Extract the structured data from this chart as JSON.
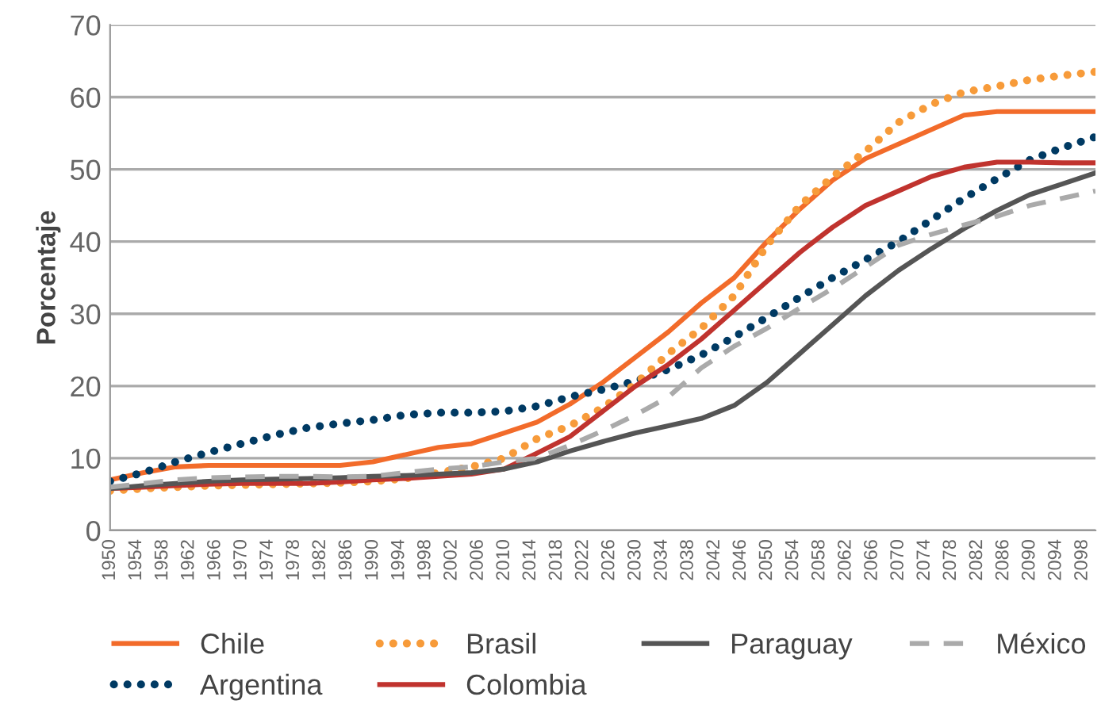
{
  "chart_data": {
    "type": "line",
    "ylabel": "Porcentaje",
    "x": [
      1950,
      1955,
      1960,
      1965,
      1970,
      1975,
      1980,
      1985,
      1990,
      1995,
      2000,
      2005,
      2010,
      2015,
      2020,
      2025,
      2030,
      2035,
      2040,
      2045,
      2050,
      2055,
      2060,
      2065,
      2070,
      2075,
      2080,
      2085,
      2090,
      2095,
      2100
    ],
    "xlim": [
      1950,
      2100
    ],
    "xticks": [
      1950,
      1954,
      1958,
      1962,
      1966,
      1970,
      1974,
      1978,
      1982,
      1986,
      1990,
      1994,
      1998,
      2002,
      2006,
      2010,
      2014,
      2018,
      2022,
      2026,
      2030,
      2034,
      2038,
      2042,
      2046,
      2050,
      2054,
      2058,
      2062,
      2066,
      2070,
      2074,
      2078,
      2082,
      2086,
      2090,
      2094,
      2098
    ],
    "ylim": [
      0,
      70
    ],
    "yticks": [
      0,
      10,
      20,
      30,
      40,
      50,
      60,
      70
    ],
    "grid": "y",
    "legend": "bottom",
    "marker": "none",
    "series": [
      {
        "name": "Chile",
        "color": "#f26b2a",
        "line_style": "solid",
        "values": [
          7,
          8,
          8.8,
          9,
          9,
          9,
          9,
          9,
          9.5,
          10.5,
          11.5,
          12,
          13.5,
          15,
          17.5,
          20.5,
          24,
          27.5,
          31.5,
          35,
          40,
          44.5,
          48.5,
          51.5,
          53.5,
          55.5,
          57.5,
          58,
          58,
          58,
          58
        ]
      },
      {
        "name": "Argentina",
        "color": "#003a63",
        "line_style": "dotted",
        "values": [
          6.8,
          8,
          9.5,
          10.8,
          12,
          13.2,
          14.2,
          14.8,
          15.3,
          16,
          16.3,
          16.3,
          16.5,
          17.2,
          18.5,
          19.5,
          20.7,
          22.3,
          24.3,
          26.8,
          29.5,
          32.3,
          35,
          37.5,
          40,
          43,
          46,
          48.7,
          51.3,
          53,
          54.5
        ]
      },
      {
        "name": "Brasil",
        "color": "#f79b3a",
        "line_style": "dotted",
        "values": [
          5.5,
          5.8,
          6,
          6.2,
          6.3,
          6.4,
          6.5,
          6.6,
          6.8,
          7.2,
          8,
          8.8,
          10,
          12.7,
          14.5,
          17,
          20.3,
          24.5,
          28,
          32.5,
          39.5,
          45,
          49,
          52.5,
          56.5,
          59,
          60.7,
          61.5,
          62.4,
          63,
          63.5
        ]
      },
      {
        "name": "Colombia",
        "color": "#c0332e",
        "line_style": "solid",
        "values": [
          5.8,
          6,
          6.2,
          6.4,
          6.5,
          6.5,
          6.5,
          6.7,
          7,
          7.2,
          7.5,
          7.8,
          8.5,
          10.7,
          13,
          16.5,
          20,
          23,
          26.5,
          30.5,
          34.5,
          38.5,
          42,
          45,
          47,
          49,
          50.3,
          51,
          51,
          50.9,
          50.9
        ]
      },
      {
        "name": "Paraguay",
        "color": "#555555",
        "line_style": "solid",
        "values": [
          5.8,
          6.2,
          6.5,
          6.8,
          7,
          7.1,
          7.2,
          7.3,
          7.5,
          7.6,
          7.8,
          8,
          8.5,
          9.5,
          11,
          12.3,
          13.5,
          14.5,
          15.5,
          17.3,
          20.5,
          24.5,
          28.5,
          32.5,
          36,
          39,
          41.8,
          44.3,
          46.5,
          48,
          49.5
        ]
      },
      {
        "name": "México",
        "color": "#aaaaaa",
        "line_style": "dashed",
        "values": [
          6,
          6.5,
          7,
          7.3,
          7.4,
          7.5,
          7.5,
          7.4,
          7.5,
          8,
          8.5,
          8.8,
          9.5,
          10,
          11.8,
          13.8,
          16,
          18.5,
          22.5,
          25.5,
          28,
          30.8,
          33.5,
          36.5,
          39.5,
          41,
          42.3,
          43.5,
          45,
          46,
          47
        ]
      }
    ]
  }
}
